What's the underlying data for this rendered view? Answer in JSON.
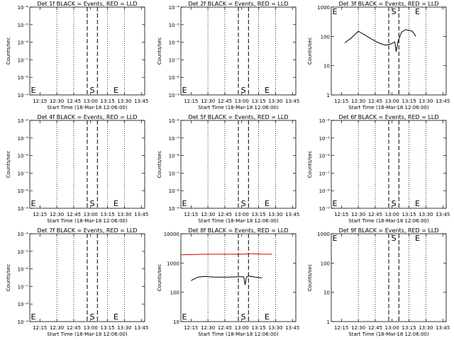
{
  "charts": [
    {
      "id": "det1f",
      "title": "Det 1f BLACK = Events, RED = LLD",
      "xlabel": "Start Time (18-Mar-18 12:06:00)",
      "ylabel": "Counts/sec",
      "log": true,
      "ylim": [
        1e-09,
        0.0001
      ],
      "yticks": [
        "10⁻⁹",
        "10⁻⁸",
        "10⁻⁷",
        "10⁻⁶",
        "10⁻⁵",
        "10⁻⁴"
      ],
      "xticks": [
        "12:15",
        "12:30",
        "12:45",
        "13:00",
        "13:15",
        "13:30",
        "13:45"
      ],
      "markers_letters": [
        "E",
        "S",
        "E"
      ],
      "series": []
    },
    {
      "id": "det2f",
      "title": "Det 2f BLACK = Events, RED = LLD",
      "xlabel": "Start Time (18-Mar-18 12:06:00)",
      "ylabel": "Counts/sec",
      "log": true,
      "ylim": [
        1e-09,
        0.0001
      ],
      "yticks": [
        "10⁻⁹",
        "10⁻⁸",
        "10⁻⁷",
        "10⁻⁶",
        "10⁻⁵",
        "10⁻⁴"
      ],
      "xticks": [
        "12:15",
        "12:30",
        "12:45",
        "13:00",
        "13:15",
        "13:30",
        "13:45"
      ],
      "markers_letters": [
        "E",
        "S",
        "E"
      ],
      "series": []
    },
    {
      "id": "det3f",
      "title": "Det 3f BLACK = Events, RED = LLD",
      "xlabel": "Start Time (18-Mar-18 12:06:00)",
      "ylabel": "Counts/sec",
      "log": true,
      "ylim": [
        1,
        1000
      ],
      "yticks": [
        "1",
        "10",
        "100",
        "1000"
      ],
      "xticks": [
        "12:15",
        "12:30",
        "12:45",
        "13:00",
        "13:15",
        "13:30",
        "13:45"
      ],
      "markers_letters": [
        "E",
        "S",
        "E"
      ],
      "series": [
        {
          "color": "#000000",
          "points": [
            [
              12.3,
              60
            ],
            [
              12.4,
              90
            ],
            [
              12.5,
              150
            ],
            [
              12.6,
              110
            ],
            [
              12.7,
              80
            ],
            [
              12.8,
              60
            ],
            [
              12.9,
              50
            ],
            [
              12.98,
              55
            ],
            [
              13.04,
              65
            ],
            [
              13.06,
              30
            ],
            [
              13.09,
              70
            ],
            [
              13.14,
              140
            ],
            [
              13.2,
              170
            ],
            [
              13.3,
              150
            ],
            [
              13.35,
              100
            ]
          ]
        }
      ]
    },
    {
      "id": "det4f",
      "title": "Det 4f BLACK = Events, RED = LLD",
      "xlabel": "Start Time (18-Mar-18 12:06:00)",
      "ylabel": "Counts/sec",
      "log": true,
      "ylim": [
        1e-09,
        0.0001
      ],
      "yticks": [
        "10⁻⁹",
        "10⁻⁸",
        "10⁻⁷",
        "10⁻⁶",
        "10⁻⁵",
        "10⁻⁴"
      ],
      "xticks": [
        "12:15",
        "12:30",
        "12:45",
        "13:00",
        "13:15",
        "13:30",
        "13:45"
      ],
      "markers_letters": [
        "E",
        "S",
        "E"
      ],
      "series": []
    },
    {
      "id": "det5f",
      "title": "Det 5f BLACK = Events, RED = LLD",
      "xlabel": "Start Time (18-Mar-18 12:06:00)",
      "ylabel": "Counts/sec",
      "log": true,
      "ylim": [
        1e-09,
        0.0001
      ],
      "yticks": [
        "10⁻⁹",
        "10⁻⁸",
        "10⁻⁷",
        "10⁻⁶",
        "10⁻⁵",
        "10⁻⁴"
      ],
      "xticks": [
        "12:15",
        "12:30",
        "12:45",
        "13:00",
        "13:15",
        "13:30",
        "13:45"
      ],
      "markers_letters": [
        "E",
        "S",
        "E"
      ],
      "series": []
    },
    {
      "id": "det6f",
      "title": "Det 6f BLACK = Events, RED = LLD",
      "xlabel": "Start Time (18-Mar-18 12:06:00)",
      "ylabel": "Counts/sec",
      "log": true,
      "ylim": [
        1e-09,
        0.0001
      ],
      "yticks": [
        "10⁻⁹",
        "10⁻⁸",
        "10⁻⁷",
        "10⁻⁶",
        "10⁻⁵",
        "10⁻⁴"
      ],
      "xticks": [
        "12:15",
        "12:30",
        "12:45",
        "13:00",
        "13:15",
        "13:30",
        "13:45"
      ],
      "markers_letters": [
        "E",
        "S",
        "E"
      ],
      "series": []
    },
    {
      "id": "det7f",
      "title": "Det 7f BLACK = Events, RED = LLD",
      "xlabel": "Start Time (18-Mar-18 12:06:00)",
      "ylabel": "Counts/sec",
      "log": true,
      "ylim": [
        1e-09,
        0.0001
      ],
      "yticks": [
        "10⁻⁹",
        "10⁻⁸",
        "10⁻⁷",
        "10⁻⁶",
        "10⁻⁵",
        "10⁻⁴"
      ],
      "xticks": [
        "12:15",
        "12:30",
        "12:45",
        "13:00",
        "13:15",
        "13:30",
        "13:45"
      ],
      "markers_letters": [
        "E",
        "S",
        "E"
      ],
      "series": []
    },
    {
      "id": "det8f",
      "title": "Det 8f BLACK = Events, RED = LLD",
      "xlabel": "Start Time (18-Mar-18 12:06:00)",
      "ylabel": "Counts/sec",
      "log": true,
      "ylim": [
        10,
        10000
      ],
      "yticks": [
        "10",
        "100",
        "1000",
        "10000"
      ],
      "xticks": [
        "12:15",
        "12:30",
        "12:45",
        "13:00",
        "13:15",
        "13:30",
        "13:45"
      ],
      "markers_letters": [
        "E",
        "S",
        "E"
      ],
      "series": [
        {
          "color": "#cc0000",
          "points": [
            [
              12.1,
              1900
            ],
            [
              12.5,
              2000
            ],
            [
              12.9,
              2000
            ],
            [
              13.05,
              2000
            ],
            [
              13.1,
              2100
            ],
            [
              13.3,
              2000
            ],
            [
              13.45,
              2000
            ]
          ]
        },
        {
          "color": "#000000",
          "points": [
            [
              12.25,
              250
            ],
            [
              12.35,
              330
            ],
            [
              12.45,
              350
            ],
            [
              12.6,
              330
            ],
            [
              12.8,
              330
            ],
            [
              12.98,
              340
            ],
            [
              13.03,
              340
            ],
            [
              13.05,
              180
            ],
            [
              13.07,
              330
            ],
            [
              13.1,
              360
            ],
            [
              13.2,
              330
            ],
            [
              13.3,
              310
            ]
          ]
        }
      ]
    },
    {
      "id": "det9f",
      "title": "Det 9f BLACK = Events, RED = LLD",
      "xlabel": "Start Time (18-Mar-18 12:06:00)",
      "ylabel": "Counts/sec",
      "log": true,
      "ylim": [
        1,
        1000
      ],
      "yticks": [
        "1",
        "10",
        "100",
        "1000"
      ],
      "xticks": [
        "12:15",
        "12:30",
        "12:45",
        "13:00",
        "13:15",
        "13:30",
        "13:45"
      ],
      "markers_letters": [
        "E",
        "S",
        "E"
      ],
      "series": []
    }
  ]
}
